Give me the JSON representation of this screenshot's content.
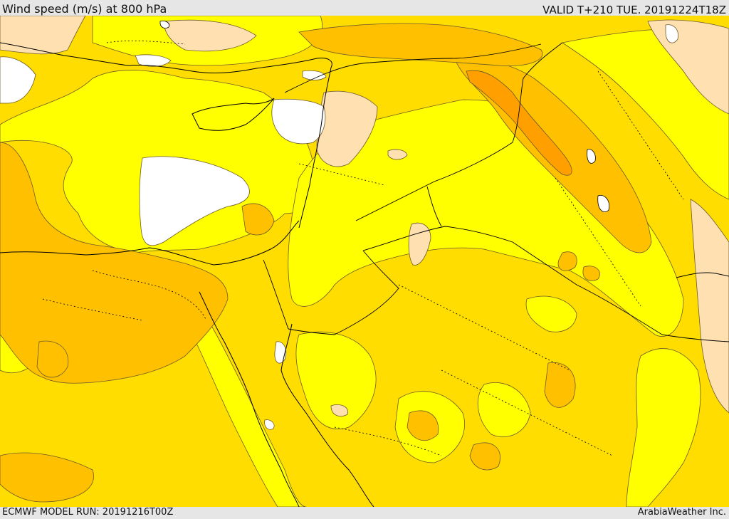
{
  "header": {
    "title": "Wind speed (m/s) at 800 hPa",
    "valid": "VALID T+210 TUE. 20191224T18Z"
  },
  "footer": {
    "model_run": "ECMWF MODEL RUN: 20191216T00Z",
    "credit": "ArabiaWeather Inc."
  },
  "colors": {
    "calm": "#ffffff",
    "light": "#ffe0b0",
    "yellow": "#ffff00",
    "gold": "#ffdd00",
    "amber": "#ffc000",
    "orange": "#ff9f00",
    "coastline": "#000000",
    "contour": "#5a4a2a"
  }
}
